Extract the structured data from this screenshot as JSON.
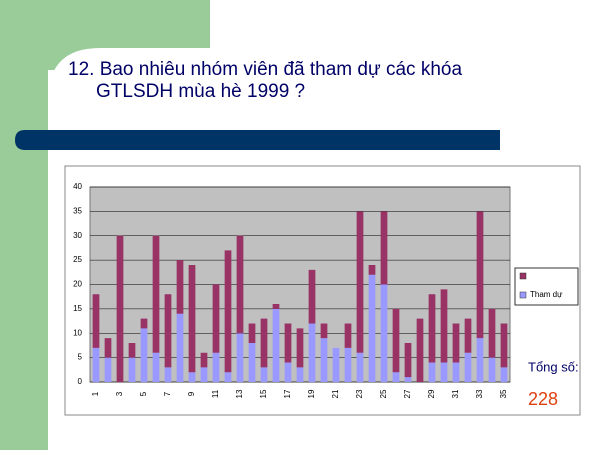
{
  "title_lines": [
    "12. Bao nhiêu nhóm viên đã tham dự các khóa",
    "GTLSDH mùa hè 1999 ?"
  ],
  "chart_data": {
    "type": "stacked_bar",
    "categories": [
      "1",
      null,
      "3",
      null,
      "5",
      null,
      "7",
      null,
      "9",
      null,
      "11",
      null,
      "13",
      null,
      "15",
      null,
      "17",
      null,
      "19",
      null,
      "21",
      null,
      "23",
      null,
      "25",
      null,
      "27",
      null,
      "29",
      null,
      "31",
      null,
      "33",
      null,
      "35"
    ],
    "series": [
      {
        "name": "Tham dự",
        "color": "#9999ff",
        "values": [
          7,
          5,
          0,
          5,
          11,
          6,
          3,
          14,
          2,
          3,
          6,
          2,
          10,
          8,
          3,
          15,
          4,
          3,
          12,
          9,
          7,
          7,
          6,
          22,
          20,
          2,
          1,
          0,
          4,
          4,
          4,
          6,
          9,
          5,
          3
        ]
      },
      {
        "color": "#993366",
        "values": [
          11,
          4,
          30,
          3,
          2,
          24,
          15,
          11,
          22,
          3,
          14,
          25,
          20,
          4,
          10,
          1,
          8,
          8,
          11,
          3,
          0,
          5,
          29,
          2,
          15,
          13,
          7,
          13,
          14,
          15,
          8,
          7,
          26,
          10,
          9
        ]
      }
    ],
    "ylim": [
      0,
      40
    ],
    "yticks": [
      0,
      5,
      10,
      15,
      20,
      25,
      30,
      35,
      40
    ],
    "grid": true,
    "annotations": [
      "Tổng số:",
      "228"
    ]
  }
}
